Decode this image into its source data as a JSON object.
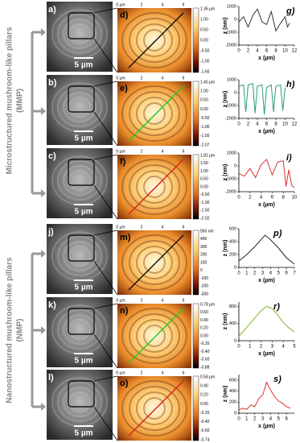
{
  "side_labels": [
    {
      "title": "Microstructured mushroom-like pillars",
      "abbr": "(MMP)"
    },
    {
      "title": "Nanostructured mushroom-like pillars",
      "abbr": "(NMP)"
    }
  ],
  "panels": [
    {
      "sem_label": "a)",
      "afm_label": "d)",
      "plot_label": "g)",
      "scale_bar": "5 µm",
      "afm_axis": [
        "0 µm",
        "2",
        "4",
        "6"
      ],
      "line_color": "#111111",
      "colorbar": [
        "1.35 µm",
        "1.00",
        "0.50",
        "0.00",
        "-0.50",
        "-1.00",
        "-1.60"
      ],
      "plot": {
        "ylabel": "z (nm)",
        "xlabel": "x (µm)",
        "color": "#333333",
        "xlim": [
          0,
          12
        ],
        "xticks": [
          0,
          2,
          4,
          6,
          8,
          10,
          12
        ],
        "ylim": [
          -2000,
          1000
        ],
        "yticks": [
          1000,
          0,
          -1000,
          -2000
        ],
        "x": [
          0,
          1,
          2,
          3,
          4,
          5,
          6,
          7,
          8,
          9,
          10,
          10.5,
          11
        ],
        "z": [
          -200,
          200,
          -600,
          300,
          800,
          -200,
          -400,
          600,
          -900,
          -300,
          200,
          -600,
          -300
        ]
      }
    },
    {
      "sem_label": "b)",
      "afm_label": "e)",
      "plot_label": "h)",
      "scale_bar": "5 µm",
      "afm_axis": [
        "0 µm",
        "2",
        "4",
        "6"
      ],
      "line_color": "#22cc22",
      "colorbar": [
        "1.40 µm",
        "1.00",
        "0.50",
        "0.00",
        "-0.50",
        "-1.00",
        "-1.50",
        "-2.07"
      ],
      "plot": {
        "ylabel": "z (nm)",
        "xlabel": "x (µm)",
        "color": "#2a9d7a",
        "xlim": [
          0,
          12
        ],
        "xticks": [
          0,
          2,
          4,
          6,
          8,
          10,
          12
        ],
        "ylim": [
          -2000,
          1000
        ],
        "yticks": [
          1000,
          0,
          -1000,
          -2000
        ],
        "x": [
          0,
          1,
          1.5,
          2,
          3,
          3.5,
          4,
          5,
          5.5,
          6,
          7,
          7.5,
          8,
          9,
          9.5,
          10
        ],
        "z": [
          500,
          600,
          -1500,
          600,
          700,
          -1600,
          500,
          600,
          -1700,
          400,
          600,
          -1500,
          500,
          600,
          -1400,
          400
        ]
      }
    },
    {
      "sem_label": "c)",
      "afm_label": "f)",
      "plot_label": "i)",
      "scale_bar": "5 µm",
      "afm_axis": [
        "0 µm",
        "2",
        "4",
        "6"
      ],
      "line_color": "#dd2222",
      "colorbar": [
        "1.82 µm",
        "1.50",
        "1.00",
        "0.50",
        "0.00",
        "-0.50",
        "-1.00",
        "-1.50",
        "-2.02"
      ],
      "plot": {
        "ylabel": "z (nm)",
        "xlabel": "x (µm)",
        "color": "#e03030",
        "xlim": [
          0,
          10
        ],
        "xticks": [
          0,
          2,
          4,
          6,
          8,
          10
        ],
        "ylim": [
          -2000,
          1000
        ],
        "yticks": [
          1000,
          0,
          -1000,
          -2000
        ],
        "x": [
          0,
          1,
          2,
          3,
          4,
          5,
          6,
          7,
          8,
          8.5,
          9,
          9.5,
          10
        ],
        "z": [
          -600,
          -800,
          -200,
          -900,
          100,
          500,
          -700,
          300,
          400,
          -1600,
          -300,
          -1500,
          -1700
        ]
      }
    },
    {
      "sem_label": "j)",
      "afm_label": "m)",
      "plot_label": "p)",
      "scale_bar": "5 µm",
      "afm_axis": [
        "0 µm",
        "2",
        "4",
        "6"
      ],
      "line_color": "#111111",
      "colorbar": [
        "550 nm",
        "400",
        "300",
        "200",
        "100",
        "0",
        "-100",
        "-200",
        "-300"
      ],
      "plot": {
        "ylabel": "z (nm)",
        "xlabel": "x (µm)",
        "color": "#222222",
        "xlim": [
          0,
          7
        ],
        "xticks": [
          0,
          1,
          2,
          3,
          4,
          5,
          6,
          7
        ],
        "ylim": [
          0,
          600
        ],
        "yticks": [
          0,
          200,
          400,
          600
        ],
        "x": [
          0,
          1,
          2,
          3,
          3.3,
          4,
          5,
          6,
          7
        ],
        "z": [
          100,
          200,
          320,
          460,
          500,
          430,
          300,
          150,
          50
        ]
      }
    },
    {
      "sem_label": "k)",
      "afm_label": "n)",
      "plot_label": "r)",
      "scale_bar": "5 µm",
      "afm_axis": [
        "0 µm",
        "2",
        "4",
        "6"
      ],
      "line_color": "#22cc22",
      "colorbar": [
        "0.78 µm",
        "0.60",
        "0.40",
        "0.20",
        "0.00",
        "-0.20",
        "-0.40",
        "-0.60",
        "-0.88"
      ],
      "plot": {
        "ylabel": "z (nm)",
        "xlabel": "x (µm)",
        "color": "#7ab82a",
        "xlim": [
          0,
          5
        ],
        "xticks": [
          0,
          1,
          2,
          3,
          4,
          5
        ],
        "ylim": [
          0,
          900
        ],
        "yticks": [
          0,
          400,
          800
        ],
        "x": [
          0,
          0.5,
          1,
          1.5,
          2,
          2.5,
          3,
          3.5,
          4,
          4.5,
          5
        ],
        "z": [
          100,
          250,
          400,
          550,
          700,
          800,
          750,
          600,
          420,
          300,
          200
        ]
      }
    },
    {
      "sem_label": "l)",
      "afm_label": "o)",
      "plot_label": "s)",
      "scale_bar": "5 µm",
      "afm_axis": [
        "0 µm",
        "2",
        "4",
        "6"
      ],
      "line_color": "#dd2222",
      "colorbar": [
        "0.58 µm",
        "0.40",
        "0.20",
        "0.00",
        "-0.20",
        "-0.40",
        "-0.60",
        "-0.74"
      ],
      "plot": {
        "ylabel": "z (nm)",
        "xlabel": "x (µm)",
        "color": "#e03030",
        "xlim": [
          0,
          7
        ],
        "xticks": [
          0,
          1,
          2,
          3,
          4,
          5,
          6
        ],
        "ylim": [
          0,
          700
        ],
        "yticks": [
          0,
          200,
          400,
          600
        ],
        "x": [
          0,
          0.5,
          1,
          1.5,
          2,
          2.5,
          3,
          3.5,
          4,
          4.5,
          5,
          5.5,
          6,
          6.5
        ],
        "z": [
          60,
          90,
          70,
          150,
          120,
          260,
          330,
          560,
          420,
          300,
          220,
          180,
          120,
          90
        ]
      }
    }
  ]
}
